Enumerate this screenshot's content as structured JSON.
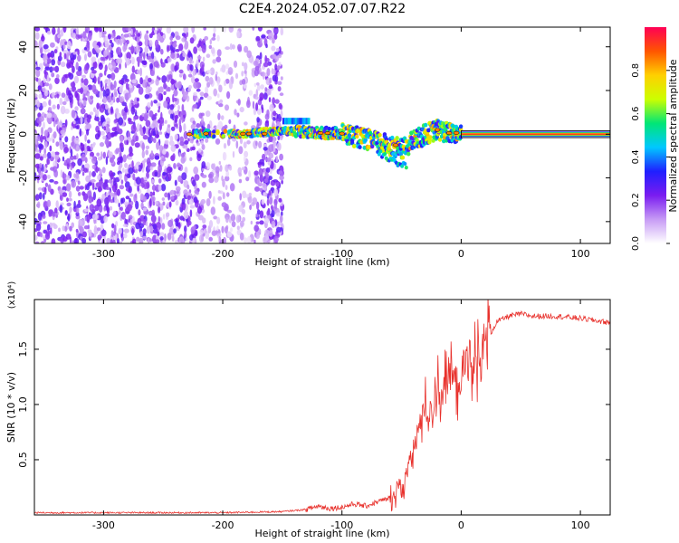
{
  "title": "C2E4.2024.052.07.07.R22",
  "chart_data": [
    {
      "type": "heatmap",
      "xlabel": "Height of straight line (km)",
      "ylabel": "Frequency (Hz)",
      "xlim": [
        -358,
        125
      ],
      "ylim": [
        -50,
        49
      ],
      "xticks": [
        -300,
        -200,
        -100,
        0,
        100
      ],
      "yticks": [
        -40,
        -20,
        0,
        20,
        40
      ],
      "colorbar": {
        "label": "Normalized spectral amplitude",
        "range": [
          0,
          1
        ],
        "ticks": [
          "0.0",
          "0.2",
          "0.4",
          "0.6",
          "0.8"
        ],
        "tick_values": [
          0.0,
          0.2,
          0.4,
          0.6,
          0.8
        ],
        "colormap": [
          "#ffffff",
          "#c79bf5",
          "#7a1cf0",
          "#1f1fff",
          "#00c8ff",
          "#00e676",
          "#ccff00",
          "#ffd000",
          "#ff5500",
          "#ff0055"
        ]
      },
      "features": {
        "noise_region_x": [
          -358,
          -150
        ],
        "carrier_track": [
          [
            -225,
            0.2
          ],
          [
            -185,
            0.2
          ],
          [
            -150,
            1.5
          ],
          [
            -120,
            0.5
          ],
          [
            -100,
            0.5
          ],
          [
            -90,
            -1
          ],
          [
            -75,
            -3
          ],
          [
            -60,
            -5
          ],
          [
            -50,
            -7
          ],
          [
            -40,
            -3
          ],
          [
            -30,
            0
          ],
          [
            -20,
            2
          ],
          [
            -10,
            0.5
          ],
          [
            0,
            0.5
          ],
          [
            125,
            0
          ]
        ],
        "strong_line_x": [
          0,
          125
        ],
        "strong_line_freq": 0
      }
    },
    {
      "type": "line",
      "xlabel": "Height of straight line (km)",
      "ylabel": "SNR (10 * v/v)",
      "y_multiplier": "(x10⁴)",
      "xlim": [
        -358,
        125
      ],
      "ylim": [
        0,
        1.95
      ],
      "xticks": [
        -300,
        -200,
        -100,
        0,
        100
      ],
      "yticks": [
        0.5,
        1.0,
        1.5
      ],
      "ytick_labels": [
        "0.5",
        "1.0",
        "1.5"
      ],
      "series": [
        {
          "color": "#e8312c",
          "x": [
            -358,
            -300,
            -200,
            -150,
            -130,
            -120,
            -110,
            -100,
            -90,
            -80,
            -70,
            -60,
            -50,
            -45,
            -40,
            -35,
            -30,
            -25,
            -20,
            -15,
            -10,
            -5,
            0,
            5,
            10,
            15,
            20,
            25,
            30,
            40,
            50,
            60,
            80,
            100,
            125
          ],
          "values": [
            0.02,
            0.02,
            0.02,
            0.03,
            0.05,
            0.08,
            0.06,
            0.07,
            0.1,
            0.08,
            0.12,
            0.15,
            0.25,
            0.4,
            0.6,
            0.8,
            1.0,
            0.9,
            1.2,
            1.1,
            1.3,
            1.2,
            1.25,
            1.4,
            1.3,
            1.5,
            1.6,
            1.65,
            1.75,
            1.8,
            1.82,
            1.8,
            1.8,
            1.78,
            1.74
          ]
        }
      ]
    }
  ]
}
